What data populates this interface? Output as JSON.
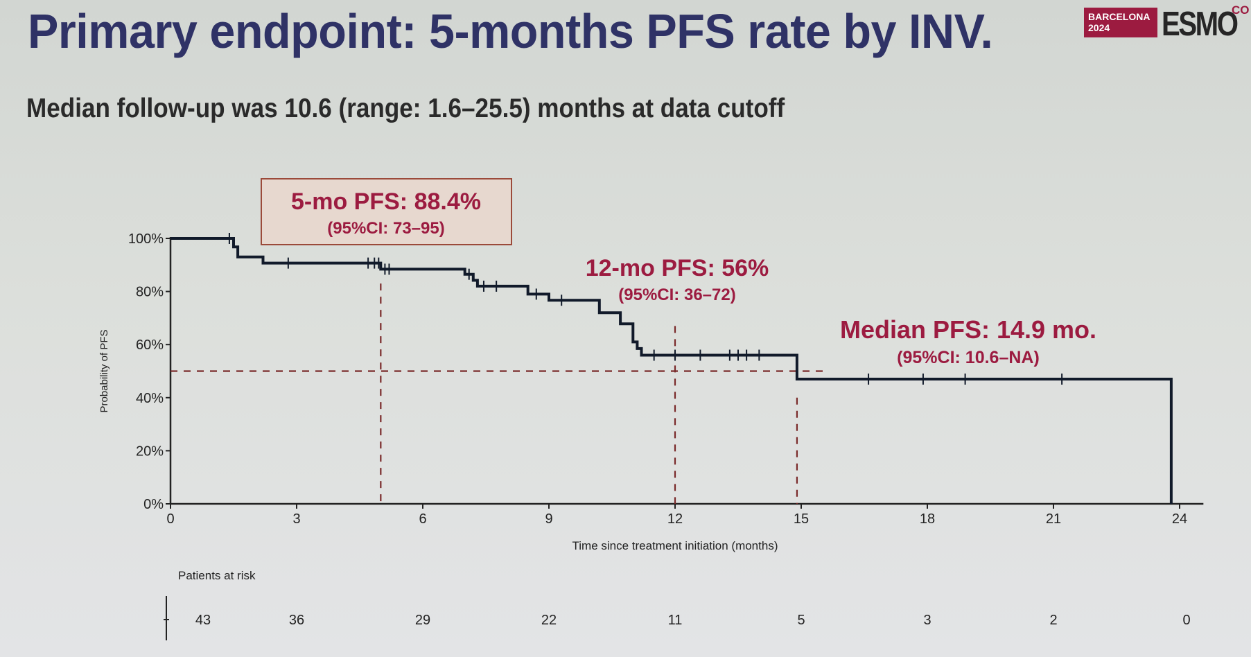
{
  "title": "Primary endpoint: 5-months PFS rate by INV.",
  "subtitle": "Median follow-up was 10.6 (range: 1.6–25.5) months at data cutoff",
  "logo": {
    "city": "BARCELONA",
    "year": "2024",
    "brand": "ESMO",
    "suffix": "CO"
  },
  "colors": {
    "title": "#2f3266",
    "annotation": "#9c1b40",
    "curve": "#111a2a",
    "guide": "#7a2a2a"
  },
  "chart_data": {
    "type": "line",
    "style": "kaplan-meier step",
    "xlabel": "Time since treatment initiation (months)",
    "ylabel": "Probability of PFS",
    "xlim": [
      0,
      24.5
    ],
    "ylim": [
      0,
      100
    ],
    "x_ticks": [
      0,
      3,
      6,
      9,
      12,
      15,
      18,
      21,
      24
    ],
    "y_ticks": [
      0,
      20,
      40,
      60,
      80,
      100
    ],
    "y_tick_labels": [
      "0%",
      "20%",
      "40%",
      "60%",
      "80%",
      "100%"
    ],
    "curve": [
      [
        0,
        100
      ],
      [
        1.5,
        100
      ],
      [
        1.5,
        96.8
      ],
      [
        1.6,
        96.8
      ],
      [
        1.6,
        93
      ],
      [
        2.2,
        93
      ],
      [
        2.2,
        90.7
      ],
      [
        5.0,
        90.7
      ],
      [
        5.0,
        88.4
      ],
      [
        7.0,
        88.4
      ],
      [
        7.0,
        86.5
      ],
      [
        7.2,
        86.5
      ],
      [
        7.2,
        84.2
      ],
      [
        7.3,
        84.2
      ],
      [
        7.3,
        82
      ],
      [
        8.5,
        82
      ],
      [
        8.5,
        79
      ],
      [
        9.0,
        79
      ],
      [
        9.0,
        76.7
      ],
      [
        10.2,
        76.7
      ],
      [
        10.2,
        72
      ],
      [
        10.7,
        72
      ],
      [
        10.7,
        67.8
      ],
      [
        11.0,
        67.8
      ],
      [
        11.0,
        61
      ],
      [
        11.1,
        61
      ],
      [
        11.1,
        58.5
      ],
      [
        11.2,
        58.5
      ],
      [
        11.2,
        56
      ],
      [
        14.9,
        56
      ],
      [
        14.9,
        47
      ],
      [
        23.8,
        47
      ],
      [
        23.8,
        0
      ]
    ],
    "censor_marks": [
      [
        1.4,
        100
      ],
      [
        2.8,
        90.7
      ],
      [
        4.7,
        90.7
      ],
      [
        4.85,
        90.7
      ],
      [
        4.95,
        90.7
      ],
      [
        5.1,
        88.4
      ],
      [
        5.2,
        88.4
      ],
      [
        7.1,
        86.5
      ],
      [
        7.45,
        82
      ],
      [
        7.75,
        82
      ],
      [
        8.7,
        79
      ],
      [
        9.3,
        76.7
      ],
      [
        11.5,
        56
      ],
      [
        12.0,
        56
      ],
      [
        12.6,
        56
      ],
      [
        13.3,
        56
      ],
      [
        13.5,
        56
      ],
      [
        13.7,
        56
      ],
      [
        14.0,
        56
      ],
      [
        16.6,
        47
      ],
      [
        17.9,
        47
      ],
      [
        18.9,
        47
      ],
      [
        21.2,
        47
      ]
    ],
    "median_line_y": 50,
    "landmark_x": [
      5,
      12,
      14.9
    ],
    "annotations": [
      {
        "title": "5-mo PFS: 88.4%",
        "ci": "(95%CI: 73–95)",
        "boxed": true
      },
      {
        "title": "12-mo PFS: 56%",
        "ci": "(95%CI: 36–72)",
        "boxed": false
      },
      {
        "title": "Median PFS: 14.9 mo.",
        "ci": "(95%CI: 10.6–NA)",
        "boxed": false
      }
    ],
    "risk_table": {
      "label": "Patients at risk",
      "times": [
        0,
        3,
        6,
        9,
        12,
        15,
        18,
        21,
        24
      ],
      "counts": [
        43,
        36,
        29,
        22,
        11,
        5,
        3,
        2,
        0
      ]
    }
  }
}
